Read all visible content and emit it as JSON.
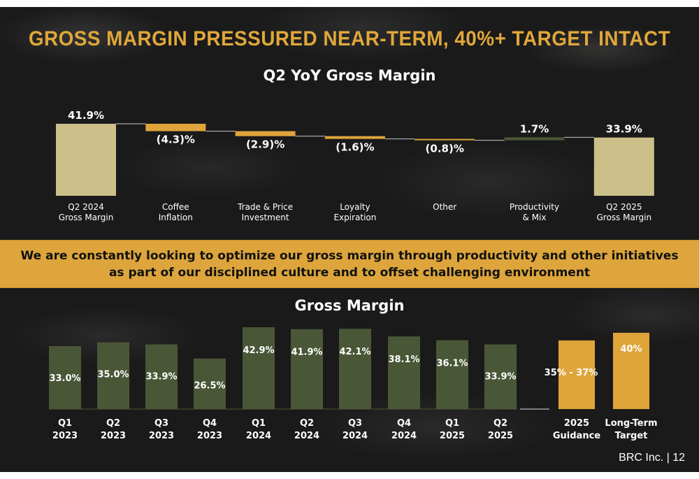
{
  "headline": "GROSS MARGIN PRESSURED NEAR-TERM, 40%+ TARGET INTACT",
  "banner_text": "We are constantly looking to optimize our gross margin through productivity and other initiatives as part of our disciplined culture and to offset challenging environment",
  "footer": "BRC Inc. | 12",
  "colors": {
    "headline": "#e0a73a",
    "total_bar": "#cdbf8a",
    "negative_bar": "#dfa53a",
    "positive_bar": "#4a5737",
    "history_bar": "#4a5737",
    "outlook_bar": "#dfa53a",
    "banner": "#dda53b"
  },
  "chart_data": [
    {
      "type": "bar",
      "variant": "waterfall",
      "title": "Q2 YoY Gross Margin",
      "categories": [
        "Q2 2024\nGross Margin",
        "Coffee\nInflation",
        "Trade & Price\nInvestment",
        "Loyalty\nExpiration",
        "Other",
        "Productivity\n& Mix",
        "Q2 2025\nGross Margin"
      ],
      "values": [
        41.9,
        -4.3,
        -2.9,
        -1.6,
        -0.8,
        1.7,
        33.9
      ],
      "kinds": [
        "total",
        "delta",
        "delta",
        "delta",
        "delta",
        "delta",
        "total"
      ],
      "labels": [
        "41.9%",
        "(4.3)%",
        "(2.9)%",
        "(1.6)%",
        "(0.8)%",
        "1.7%",
        "33.9%"
      ]
    },
    {
      "type": "bar",
      "title": "Gross Margin",
      "categories": [
        "Q1\n2023",
        "Q2\n2023",
        "Q3\n2023",
        "Q4\n2023",
        "Q1\n2024",
        "Q2\n2024",
        "Q3\n2024",
        "Q4\n2024",
        "Q1\n2025",
        "Q2\n2025",
        "2025\nGuidance",
        "Long-Term\nTarget"
      ],
      "values": [
        33.0,
        35.0,
        33.9,
        26.5,
        42.9,
        41.9,
        42.1,
        38.1,
        36.1,
        33.9,
        36.0,
        40.0
      ],
      "labels": [
        "33.0%",
        "35.0%",
        "33.9%",
        "26.5%",
        "42.9%",
        "41.9%",
        "42.1%",
        "38.1%",
        "36.1%",
        "33.9%",
        "35% - 37%",
        "40%"
      ],
      "kinds": [
        "history",
        "history",
        "history",
        "history",
        "history",
        "history",
        "history",
        "history",
        "history",
        "history",
        "outlook",
        "outlook"
      ]
    }
  ]
}
